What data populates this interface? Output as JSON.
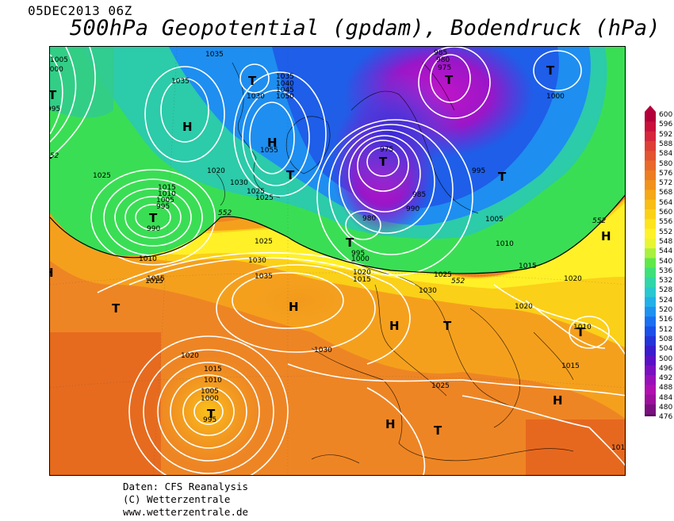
{
  "header": {
    "datetime": "05DEC2013 06Z",
    "title": "500hPa Geopotential (gpdam), Bodendruck (hPa)"
  },
  "footer": {
    "line1": "Daten: CFS Reanalysis",
    "line2": "(C) Wetterzentrale",
    "line3": "www.wetterzentrale.de"
  },
  "legend": {
    "levels": [
      "600",
      "596",
      "592",
      "588",
      "584",
      "580",
      "576",
      "572",
      "568",
      "564",
      "560",
      "556",
      "552",
      "548",
      "544",
      "540",
      "536",
      "532",
      "528",
      "524",
      "520",
      "516",
      "512",
      "508",
      "504",
      "500",
      "496",
      "492",
      "488",
      "484",
      "480",
      "476"
    ],
    "colors": [
      "#b3003a",
      "#c8103a",
      "#d6263c",
      "#dd3f36",
      "#e25530",
      "#e8692a",
      "#ed7d22",
      "#f1921c",
      "#f5a818",
      "#f8bd16",
      "#fbd116",
      "#fde41c",
      "#fff22a",
      "#e8f534",
      "#a9f040",
      "#5fe84a",
      "#3ee07a",
      "#30d6a8",
      "#28c8d0",
      "#22b0e8",
      "#1e92f0",
      "#1a70f0",
      "#1a50e8",
      "#2434d8",
      "#3a1ccc",
      "#5a10c4",
      "#7a10c0",
      "#9810b8",
      "#b010b0",
      "#9c109c",
      "#7a1080",
      "#5a0a60"
    ]
  },
  "map_labels": {
    "pressure_centers": [
      {
        "text": "T"
      },
      {
        "text": "H"
      },
      {
        "text": "H"
      },
      {
        "text": "T"
      },
      {
        "text": "T"
      },
      {
        "text": "T"
      },
      {
        "text": "T"
      },
      {
        "text": "T"
      },
      {
        "text": "T"
      },
      {
        "text": "T"
      },
      {
        "text": "H"
      },
      {
        "text": "T"
      },
      {
        "text": "H"
      },
      {
        "text": "T"
      },
      {
        "text": "H"
      },
      {
        "text": "T"
      },
      {
        "text": "T"
      },
      {
        "text": "H"
      },
      {
        "text": "T"
      },
      {
        "text": "H"
      },
      {
        "text": "T"
      },
      {
        "text": "T"
      },
      {
        "text": "H"
      }
    ],
    "isobar_labels": [
      "1005",
      "1000",
      "995",
      "1035",
      "1035",
      "1035",
      "1040",
      "1045",
      "1050",
      "1030",
      "1055",
      "985",
      "980",
      "975",
      "1025",
      "1020",
      "1030",
      "1025",
      "1025",
      "1015",
      "1010",
      "1005",
      "995",
      "990",
      "1010",
      "1015",
      "1025",
      "1030",
      "1035",
      "1000",
      "995",
      "980",
      "975",
      "985",
      "990",
      "995",
      "1000",
      "1005",
      "1010",
      "1015",
      "1020",
      "1015",
      "1020",
      "1025",
      "1030",
      "1020",
      "1010",
      "1015",
      "1030",
      "1020",
      "1015",
      "1010",
      "1005",
      "1000",
      "995",
      "1025",
      "1010",
      "1015"
    ],
    "contour_labels": [
      "552",
      "552",
      "552",
      "552"
    ]
  }
}
